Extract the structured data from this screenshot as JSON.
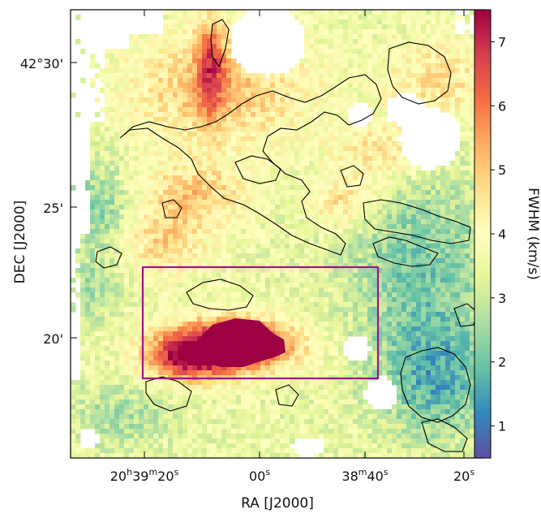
{
  "chart_data": {
    "type": "heatmap",
    "title": "",
    "xlabel": "RA [J2000]",
    "ylabel": "DEC [J2000]",
    "x_ticks": [
      {
        "h": "20",
        "m": "39",
        "s": "20",
        "label_full": "20h39m20s"
      },
      {
        "s": "00",
        "label_full": "00s"
      },
      {
        "m": "38",
        "s": "40",
        "label_full": "38m40s"
      },
      {
        "s": "20",
        "label_full": "20s"
      }
    ],
    "y_ticks": [
      "42°30'",
      "25'",
      "20'"
    ],
    "colorbar": {
      "label": "FWHM (km/s)",
      "range": [
        0.5,
        7.5
      ],
      "ticks": [
        "1",
        "2",
        "3",
        "4",
        "5",
        "6",
        "7"
      ],
      "colormap": "Spectral_r"
    },
    "overlays": {
      "contours": "black",
      "box": {
        "color": "#a0148c",
        "description": "rectangle region"
      }
    },
    "hotspot_fwhm": 7.5,
    "background_fwhm_typical": 3.5
  }
}
